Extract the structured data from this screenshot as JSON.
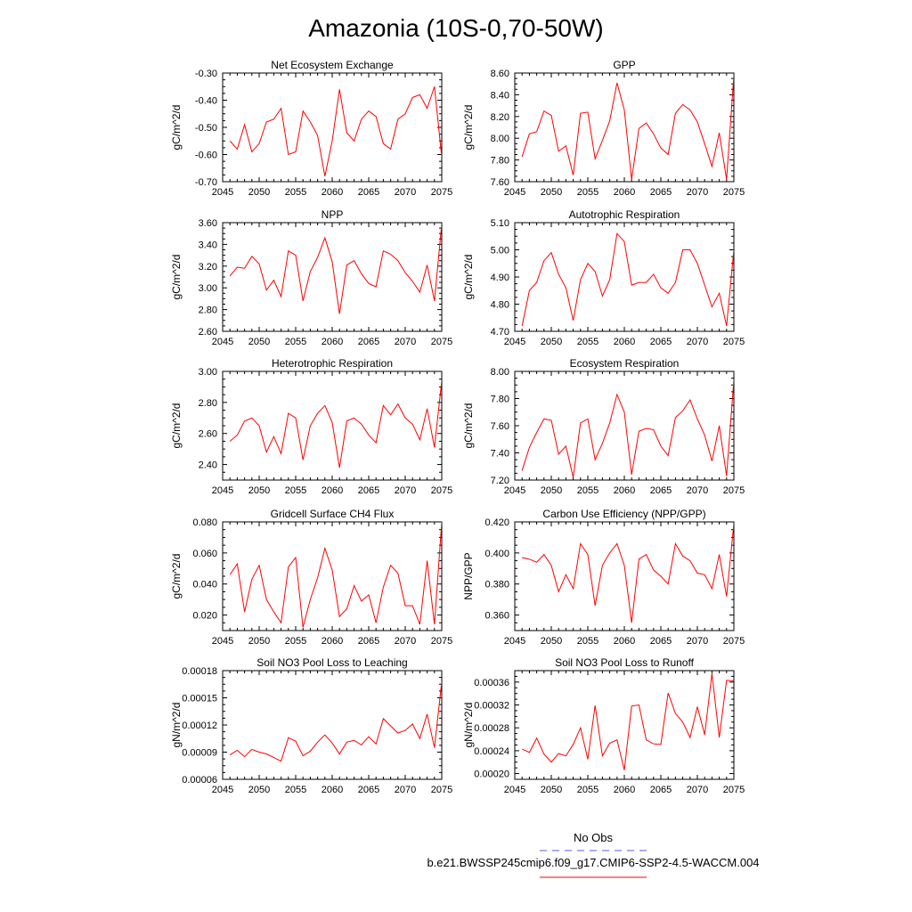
{
  "title": "Amazonia (10S-0,70-50W)",
  "legend": {
    "entries": [
      {
        "name": "No Obs",
        "color": "#5a5ae6",
        "style": "dashed"
      },
      {
        "name": "b.e21.BWSSP245cmip6.f09_g17.CMIP6-SSP2-4.5-WACCM.004",
        "color": "#ff0000",
        "style": "solid"
      }
    ]
  },
  "colors": {
    "series": "#ff0000",
    "obs": "#5a5ae6"
  },
  "chart_data": [
    {
      "type": "line",
      "title": "Net Ecosystem Exchange",
      "ylabel": "gC/m^2/d",
      "xlim": [
        2045,
        2075
      ],
      "ylim": [
        -0.7,
        -0.3
      ],
      "xticks": [
        2045,
        2050,
        2055,
        2060,
        2065,
        2070,
        2075
      ],
      "xtick_labels": [
        "2045",
        "2050",
        "2055",
        "2060",
        "2065",
        "2070",
        "2075"
      ],
      "yticks": [
        -0.7,
        -0.6,
        -0.5,
        -0.4,
        -0.3
      ],
      "ytick_labels": [
        "-0.70",
        "-0.60",
        "-0.50",
        "-0.40",
        "-0.30"
      ],
      "x": [
        2046,
        2047,
        2048,
        2049,
        2050,
        2051,
        2052,
        2053,
        2054,
        2055,
        2056,
        2057,
        2058,
        2059,
        2060,
        2061,
        2062,
        2063,
        2064,
        2065,
        2066,
        2067,
        2068,
        2069,
        2070,
        2071,
        2072,
        2073,
        2074,
        2075
      ],
      "series": [
        {
          "values": [
            -0.55,
            -0.58,
            -0.49,
            -0.59,
            -0.56,
            -0.48,
            -0.47,
            -0.43,
            -0.6,
            -0.59,
            -0.44,
            -0.48,
            -0.53,
            -0.68,
            -0.55,
            -0.36,
            -0.52,
            -0.55,
            -0.47,
            -0.44,
            -0.46,
            -0.56,
            -0.58,
            -0.47,
            -0.45,
            -0.39,
            -0.38,
            -0.43,
            -0.35,
            -0.61
          ]
        }
      ]
    },
    {
      "type": "line",
      "title": "GPP",
      "ylabel": "gC/m^2/d",
      "xlim": [
        2045,
        2075
      ],
      "ylim": [
        7.6,
        8.6
      ],
      "xticks": [
        2045,
        2050,
        2055,
        2060,
        2065,
        2070,
        2075
      ],
      "xtick_labels": [
        "2045",
        "2050",
        "2055",
        "2060",
        "2065",
        "2070",
        "2075"
      ],
      "yticks": [
        7.6,
        7.8,
        8.0,
        8.2,
        8.4,
        8.6
      ],
      "ytick_labels": [
        "7.60",
        "7.80",
        "8.00",
        "8.20",
        "8.40",
        "8.60"
      ],
      "x": [
        2046,
        2047,
        2048,
        2049,
        2050,
        2051,
        2052,
        2053,
        2054,
        2055,
        2056,
        2057,
        2058,
        2059,
        2060,
        2061,
        2062,
        2063,
        2064,
        2065,
        2066,
        2067,
        2068,
        2069,
        2070,
        2071,
        2072,
        2073,
        2074,
        2075
      ],
      "series": [
        {
          "values": [
            7.83,
            8.04,
            8.06,
            8.25,
            8.21,
            7.88,
            7.93,
            7.66,
            8.23,
            8.24,
            7.81,
            7.98,
            8.16,
            8.51,
            8.26,
            7.62,
            8.09,
            8.14,
            8.04,
            7.91,
            7.85,
            8.23,
            8.31,
            8.26,
            8.15,
            7.95,
            7.74,
            8.05,
            7.62,
            8.58
          ]
        }
      ]
    },
    {
      "type": "line",
      "title": "NPP",
      "ylabel": "gC/m^2/d",
      "xlim": [
        2045,
        2075
      ],
      "ylim": [
        2.6,
        3.6
      ],
      "xticks": [
        2045,
        2050,
        2055,
        2060,
        2065,
        2070,
        2075
      ],
      "xtick_labels": [
        "2045",
        "2050",
        "2055",
        "2060",
        "2065",
        "2070",
        "2075"
      ],
      "yticks": [
        2.6,
        2.8,
        3.0,
        3.2,
        3.4,
        3.6
      ],
      "ytick_labels": [
        "2.60",
        "2.80",
        "3.00",
        "3.20",
        "3.40",
        "3.60"
      ],
      "x": [
        2046,
        2047,
        2048,
        2049,
        2050,
        2051,
        2052,
        2053,
        2054,
        2055,
        2056,
        2057,
        2058,
        2059,
        2060,
        2061,
        2062,
        2063,
        2064,
        2065,
        2066,
        2067,
        2068,
        2069,
        2070,
        2071,
        2072,
        2073,
        2074,
        2075
      ],
      "series": [
        {
          "values": [
            3.11,
            3.19,
            3.18,
            3.29,
            3.22,
            2.98,
            3.07,
            2.92,
            3.34,
            3.3,
            2.88,
            3.15,
            3.28,
            3.46,
            3.24,
            2.76,
            3.21,
            3.25,
            3.13,
            3.04,
            3.01,
            3.34,
            3.31,
            3.25,
            3.14,
            3.06,
            2.96,
            3.21,
            2.88,
            3.59
          ]
        }
      ]
    },
    {
      "type": "line",
      "title": "Autotrophic Respiration",
      "ylabel": "gC/m^2/d",
      "xlim": [
        2045,
        2075
      ],
      "ylim": [
        4.7,
        5.1
      ],
      "xticks": [
        2045,
        2050,
        2055,
        2060,
        2065,
        2070,
        2075
      ],
      "xtick_labels": [
        "2045",
        "2050",
        "2055",
        "2060",
        "2065",
        "2070",
        "2075"
      ],
      "yticks": [
        4.7,
        4.8,
        4.9,
        5.0,
        5.1
      ],
      "ytick_labels": [
        "4.70",
        "4.80",
        "4.90",
        "5.00",
        "5.10"
      ],
      "x": [
        2046,
        2047,
        2048,
        2049,
        2050,
        2051,
        2052,
        2053,
        2054,
        2055,
        2056,
        2057,
        2058,
        2059,
        2060,
        2061,
        2062,
        2063,
        2064,
        2065,
        2066,
        2067,
        2068,
        2069,
        2070,
        2071,
        2072,
        2073,
        2074,
        2075
      ],
      "series": [
        {
          "values": [
            4.72,
            4.85,
            4.88,
            4.96,
            4.99,
            4.91,
            4.86,
            4.74,
            4.89,
            4.95,
            4.92,
            4.83,
            4.89,
            5.06,
            5.03,
            4.87,
            4.88,
            4.88,
            4.91,
            4.86,
            4.84,
            4.88,
            5.0,
            5.0,
            4.95,
            4.87,
            4.79,
            4.84,
            4.72,
            5.0
          ]
        }
      ]
    },
    {
      "type": "line",
      "title": "Heterotrophic Respiration",
      "ylabel": "gC/m^2/d",
      "xlim": [
        2045,
        2075
      ],
      "ylim": [
        2.3,
        3.0
      ],
      "xticks": [
        2045,
        2050,
        2055,
        2060,
        2065,
        2070,
        2075
      ],
      "xtick_labels": [
        "2045",
        "2050",
        "2055",
        "2060",
        "2065",
        "2070",
        "2075"
      ],
      "yticks": [
        2.4,
        2.6,
        2.8,
        3.0
      ],
      "ytick_labels": [
        "2.40",
        "2.60",
        "2.80",
        "3.00"
      ],
      "x": [
        2046,
        2047,
        2048,
        2049,
        2050,
        2051,
        2052,
        2053,
        2054,
        2055,
        2056,
        2057,
        2058,
        2059,
        2060,
        2061,
        2062,
        2063,
        2064,
        2065,
        2066,
        2067,
        2068,
        2069,
        2070,
        2071,
        2072,
        2073,
        2074,
        2075
      ],
      "series": [
        {
          "values": [
            2.55,
            2.59,
            2.68,
            2.7,
            2.65,
            2.48,
            2.58,
            2.47,
            2.73,
            2.7,
            2.43,
            2.65,
            2.73,
            2.78,
            2.67,
            2.38,
            2.68,
            2.7,
            2.66,
            2.59,
            2.54,
            2.78,
            2.72,
            2.79,
            2.7,
            2.66,
            2.56,
            2.76,
            2.51,
            2.94
          ]
        }
      ]
    },
    {
      "type": "line",
      "title": "Ecosystem Respiration",
      "ylabel": "gC/m^2/d",
      "xlim": [
        2045,
        2075
      ],
      "ylim": [
        7.2,
        8.0
      ],
      "xticks": [
        2045,
        2050,
        2055,
        2060,
        2065,
        2070,
        2075
      ],
      "xtick_labels": [
        "2045",
        "2050",
        "2055",
        "2060",
        "2065",
        "2070",
        "2075"
      ],
      "yticks": [
        7.2,
        7.4,
        7.6,
        7.8,
        8.0
      ],
      "ytick_labels": [
        "7.20",
        "7.40",
        "7.60",
        "7.80",
        "8.00"
      ],
      "x": [
        2046,
        2047,
        2048,
        2049,
        2050,
        2051,
        2052,
        2053,
        2054,
        2055,
        2056,
        2057,
        2058,
        2059,
        2060,
        2061,
        2062,
        2063,
        2064,
        2065,
        2066,
        2067,
        2068,
        2069,
        2070,
        2071,
        2072,
        2073,
        2074,
        2075
      ],
      "series": [
        {
          "values": [
            7.27,
            7.44,
            7.55,
            7.65,
            7.64,
            7.39,
            7.45,
            7.22,
            7.62,
            7.65,
            7.35,
            7.47,
            7.62,
            7.83,
            7.7,
            7.24,
            7.56,
            7.58,
            7.57,
            7.45,
            7.38,
            7.66,
            7.71,
            7.79,
            7.65,
            7.53,
            7.34,
            7.6,
            7.23,
            7.94
          ]
        }
      ]
    },
    {
      "type": "line",
      "title": "Gridcell Surface CH4 Flux",
      "ylabel": "gC/m^2/d",
      "xlim": [
        2045,
        2075
      ],
      "ylim": [
        0.01,
        0.08
      ],
      "xticks": [
        2045,
        2050,
        2055,
        2060,
        2065,
        2070,
        2075
      ],
      "xtick_labels": [
        "2045",
        "2050",
        "2055",
        "2060",
        "2065",
        "2070",
        "2075"
      ],
      "yticks": [
        0.02,
        0.04,
        0.06,
        0.08
      ],
      "ytick_labels": [
        "0.020",
        "0.040",
        "0.060",
        "0.080"
      ],
      "x": [
        2046,
        2047,
        2048,
        2049,
        2050,
        2051,
        2052,
        2053,
        2054,
        2055,
        2056,
        2057,
        2058,
        2059,
        2060,
        2061,
        2062,
        2063,
        2064,
        2065,
        2066,
        2067,
        2068,
        2069,
        2070,
        2071,
        2072,
        2073,
        2074,
        2075
      ],
      "series": [
        {
          "values": [
            0.046,
            0.053,
            0.022,
            0.043,
            0.052,
            0.03,
            0.022,
            0.015,
            0.051,
            0.057,
            0.012,
            0.03,
            0.044,
            0.063,
            0.049,
            0.019,
            0.024,
            0.039,
            0.029,
            0.033,
            0.015,
            0.038,
            0.052,
            0.047,
            0.026,
            0.026,
            0.014,
            0.055,
            0.014,
            0.08
          ]
        }
      ]
    },
    {
      "type": "line",
      "title": "Carbon Use Efficiency (NPP/GPP)",
      "ylabel": "NPP/GPP",
      "xlim": [
        2045,
        2075
      ],
      "ylim": [
        0.35,
        0.42
      ],
      "xticks": [
        2045,
        2050,
        2055,
        2060,
        2065,
        2070,
        2075
      ],
      "xtick_labels": [
        "2045",
        "2050",
        "2055",
        "2060",
        "2065",
        "2070",
        "2075"
      ],
      "yticks": [
        0.36,
        0.38,
        0.4,
        0.42
      ],
      "ytick_labels": [
        "0.360",
        "0.380",
        "0.400",
        "0.420"
      ],
      "x": [
        2046,
        2047,
        2048,
        2049,
        2050,
        2051,
        2052,
        2053,
        2054,
        2055,
        2056,
        2057,
        2058,
        2059,
        2060,
        2061,
        2062,
        2063,
        2064,
        2065,
        2066,
        2067,
        2068,
        2069,
        2070,
        2071,
        2072,
        2073,
        2074,
        2075
      ],
      "series": [
        {
          "values": [
            0.397,
            0.396,
            0.394,
            0.399,
            0.392,
            0.375,
            0.386,
            0.377,
            0.406,
            0.399,
            0.366,
            0.392,
            0.4,
            0.406,
            0.392,
            0.355,
            0.396,
            0.399,
            0.389,
            0.385,
            0.38,
            0.406,
            0.398,
            0.395,
            0.387,
            0.386,
            0.377,
            0.399,
            0.372,
            0.419
          ]
        }
      ]
    },
    {
      "type": "line",
      "title": "Soil NO3 Pool Loss to Leaching",
      "ylabel": "gN/m^2/d",
      "xlim": [
        2045,
        2075
      ],
      "ylim": [
        6e-05,
        0.00018
      ],
      "xticks": [
        2045,
        2050,
        2055,
        2060,
        2065,
        2070,
        2075
      ],
      "xtick_labels": [
        "2045",
        "2050",
        "2055",
        "2060",
        "2065",
        "2070",
        "2075"
      ],
      "yticks": [
        6e-05,
        9e-05,
        0.00012,
        0.00015,
        0.00018
      ],
      "ytick_labels": [
        "0.00006",
        "0.00009",
        "0.00012",
        "0.00015",
        "0.00018"
      ],
      "x": [
        2046,
        2047,
        2048,
        2049,
        2050,
        2051,
        2052,
        2053,
        2054,
        2055,
        2056,
        2057,
        2058,
        2059,
        2060,
        2061,
        2062,
        2063,
        2064,
        2065,
        2066,
        2067,
        2068,
        2069,
        2070,
        2071,
        2072,
        2073,
        2074,
        2075
      ],
      "series": [
        {
          "values": [
            8.7e-05,
            9.2e-05,
            8.5e-05,
            9.3e-05,
            9e-05,
            8.8e-05,
            8.4e-05,
            8e-05,
            0.000106,
            0.000102,
            8.6e-05,
            9.1e-05,
            0.000101,
            0.000109,
            0.0001,
            8.8e-05,
            0.000101,
            0.000103,
            9.8e-05,
            0.000107,
            9.9e-05,
            0.000127,
            0.000119,
            0.000111,
            0.000114,
            0.000121,
            0.000105,
            0.000132,
            9.5e-05,
            0.000168
          ]
        }
      ]
    },
    {
      "type": "line",
      "title": "Soil NO3 Pool Loss to Runoff",
      "ylabel": "gN/m^2/d",
      "xlim": [
        2045,
        2075
      ],
      "ylim": [
        0.00019,
        0.00038
      ],
      "xticks": [
        2045,
        2050,
        2055,
        2060,
        2065,
        2070,
        2075
      ],
      "xtick_labels": [
        "2045",
        "2050",
        "2055",
        "2060",
        "2065",
        "2070",
        "2075"
      ],
      "yticks": [
        0.0002,
        0.00024,
        0.00028,
        0.00032,
        0.00036
      ],
      "ytick_labels": [
        "0.00020",
        "0.00024",
        "0.00028",
        "0.00032",
        "0.00036"
      ],
      "x": [
        2046,
        2047,
        2048,
        2049,
        2050,
        2051,
        2052,
        2053,
        2054,
        2055,
        2056,
        2057,
        2058,
        2059,
        2060,
        2061,
        2062,
        2063,
        2064,
        2065,
        2066,
        2067,
        2068,
        2069,
        2070,
        2071,
        2072,
        2073,
        2074,
        2075
      ],
      "series": [
        {
          "values": [
            0.000243,
            0.000237,
            0.000262,
            0.000234,
            0.00022,
            0.000235,
            0.000231,
            0.000251,
            0.00028,
            0.000225,
            0.000319,
            0.000231,
            0.000253,
            0.000259,
            0.000206,
            0.000318,
            0.00032,
            0.000259,
            0.000252,
            0.000251,
            0.000341,
            0.000305,
            0.00029,
            0.000263,
            0.000317,
            0.000268,
            0.000375,
            0.000263,
            0.000363,
            0.000362
          ]
        }
      ]
    }
  ]
}
